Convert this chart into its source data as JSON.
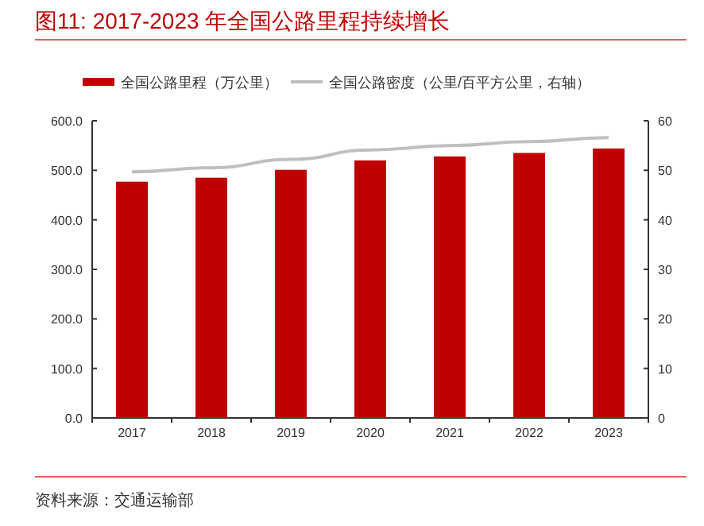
{
  "chart_data": {
    "type": "bar",
    "title": "图11:  2017-2023 年全国公路里程持续增长",
    "categories": [
      "2017",
      "2018",
      "2019",
      "2020",
      "2021",
      "2022",
      "2023"
    ],
    "series": [
      {
        "name": "全国公路里程（万公里）",
        "color": "#c00000",
        "values": [
          477,
          485,
          501,
          520,
          528,
          535,
          544
        ]
      },
      {
        "name": "全国公路密度（公里/百平方公里，右轴）",
        "color": "#bfbfbf",
        "type": "line",
        "axis": "y2",
        "values": [
          49.7,
          50.5,
          52.2,
          54.1,
          55.0,
          55.8,
          56.6
        ]
      }
    ],
    "ylim": [
      0,
      600
    ],
    "yticks": [
      {
        "value": 0,
        "label": "0.0"
      },
      {
        "value": 100,
        "label": "100.0"
      },
      {
        "value": 200,
        "label": "200.0"
      },
      {
        "value": 300,
        "label": "300.0"
      },
      {
        "value": 400,
        "label": "400.0"
      },
      {
        "value": 500,
        "label": "500.0"
      },
      {
        "value": 600,
        "label": "600.0"
      }
    ],
    "y2lim": [
      0,
      60
    ],
    "y2ticks": [
      0,
      10,
      20,
      30,
      40,
      50,
      60
    ],
    "legend": "top",
    "grid": false,
    "annotations": [
      "资料来源：交通运输部"
    ]
  }
}
